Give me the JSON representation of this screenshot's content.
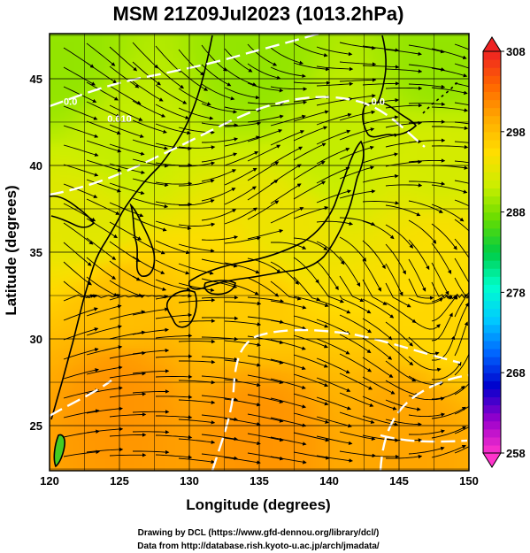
{
  "chart_data": {
    "type": "heatmap",
    "title": "MSM 21Z09Jul2023 (1013.2hPa)",
    "xlabel": "Longitude (degrees)",
    "ylabel": "Latitude  (degrees)",
    "xlim": [
      120,
      150
    ],
    "ylim": [
      22.4,
      47.6
    ],
    "xticks": [
      120,
      125,
      130,
      135,
      140,
      145,
      150
    ],
    "xtick_labels": [
      "120",
      "125",
      "130",
      "135",
      "140",
      "145",
      "150"
    ],
    "yticks": [
      25,
      30,
      35,
      40,
      45
    ],
    "ytick_labels": [
      "25",
      "30",
      "35",
      "40",
      "45"
    ],
    "grid": true,
    "colorbar": {
      "min": 258,
      "max": 308,
      "ticks": [
        258,
        268,
        278,
        288,
        298,
        308
      ],
      "tick_labels": [
        "258",
        "268",
        "278",
        "288",
        "298",
        "308"
      ],
      "colors": [
        "#ff33cc",
        "#9900cc",
        "#0000cc",
        "#0066ff",
        "#00ccff",
        "#00ffcc",
        "#00cc44",
        "#66dd00",
        "#ccee00",
        "#ffdd00",
        "#ffaa00",
        "#ff6600",
        "#ee2222"
      ]
    },
    "field_samples": [
      {
        "lon": 121,
        "lat": 46,
        "value": 289
      },
      {
        "lon": 135,
        "lat": 46,
        "value": 289
      },
      {
        "lon": 148,
        "lat": 46,
        "value": 289
      },
      {
        "lon": 125,
        "lat": 41,
        "value": 291
      },
      {
        "lon": 140,
        "lat": 41,
        "value": 291
      },
      {
        "lon": 148,
        "lat": 40,
        "value": 292
      },
      {
        "lon": 123,
        "lat": 37,
        "value": 293
      },
      {
        "lon": 137,
        "lat": 36,
        "value": 294
      },
      {
        "lon": 148,
        "lat": 35,
        "value": 295
      },
      {
        "lon": 125,
        "lat": 32,
        "value": 298
      },
      {
        "lon": 135,
        "lat": 32,
        "value": 297
      },
      {
        "lon": 148,
        "lat": 31,
        "value": 296
      },
      {
        "lon": 125,
        "lat": 27,
        "value": 301
      },
      {
        "lon": 135,
        "lat": 25,
        "value": 301
      },
      {
        "lon": 146,
        "lat": 25,
        "value": 300
      }
    ],
    "contour_labels": [
      {
        "lon": 125,
        "lat": 42.5,
        "text": "0.010"
      },
      {
        "lon": 143.5,
        "lat": 43.5,
        "text": "0.0"
      },
      {
        "lon": 121.5,
        "lat": 43.5,
        "text": "0.0"
      }
    ]
  },
  "credits": {
    "line1": "Drawing by DCL (https://www.gfd-dennou.org/library/dcl/)",
    "line2": "Data from http://database.rish.kyoto-u.ac.jp/arch/jmadata/"
  }
}
